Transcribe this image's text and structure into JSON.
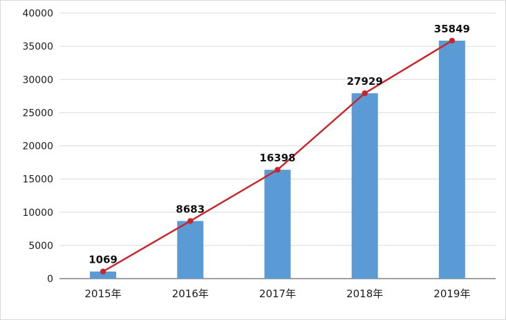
{
  "chart_data": {
    "type": "bar",
    "overlay": "line",
    "title": "",
    "xlabel": "",
    "ylabel": "",
    "categories": [
      "2015年",
      "2016年",
      "2017年",
      "2018年",
      "2019年"
    ],
    "values": [
      1069,
      8683,
      16398,
      27929,
      35849
    ],
    "data_labels": [
      "1069",
      "8683",
      "16398",
      "27929",
      "35849"
    ],
    "ylim": [
      0,
      40000
    ],
    "ytick_step": 5000,
    "yticks": [
      0,
      5000,
      10000,
      15000,
      20000,
      25000,
      30000,
      35000,
      40000
    ],
    "grid": true,
    "legend_position": "none",
    "style": {
      "bar_color": "#5B9BD5",
      "line_color": "#C9252C",
      "marker_color": "#C9252C",
      "grid_color": "#D9D9D9",
      "axis_color": "#808080",
      "label_color": "#111111",
      "background": "#FFFFFF"
    }
  }
}
